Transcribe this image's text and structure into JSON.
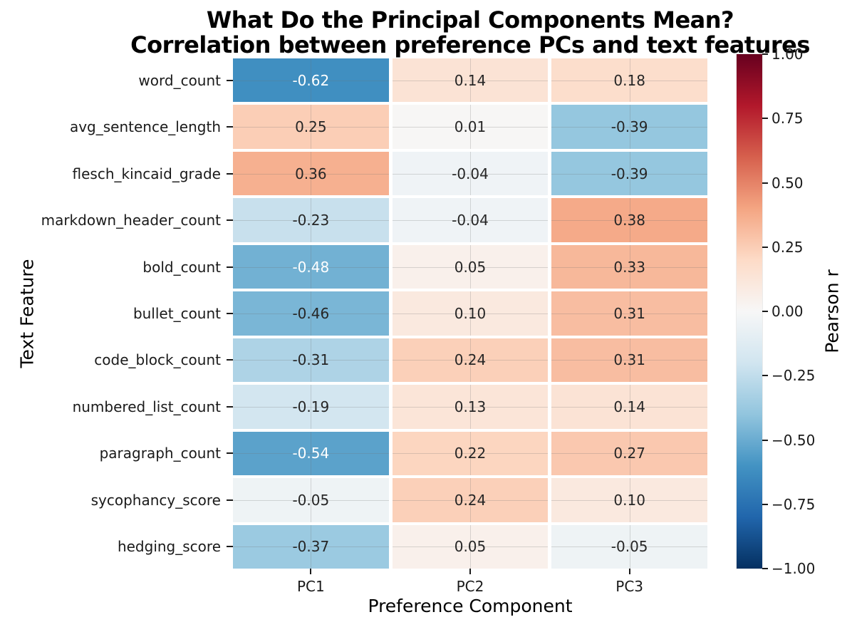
{
  "chart_data": {
    "type": "heatmap",
    "title": "What Do the Principal Components Mean?",
    "subtitle": "Correlation between preference PCs and text features",
    "xlabel": "Preference Component",
    "ylabel": "Text Feature",
    "colorbar_label": "Pearson r",
    "colormap": "RdBu_r",
    "vmin": -1,
    "vmax": 1,
    "colormap_stops": [
      "#053061",
      "#2166ac",
      "#4393c3",
      "#92c5de",
      "#d1e5f0",
      "#f7f7f7",
      "#fddbc7",
      "#f4a582",
      "#d6604d",
      "#b2182b",
      "#67001f"
    ],
    "colorbar_ticks": [
      1.0,
      0.75,
      0.5,
      0.25,
      0.0,
      -0.25,
      -0.5,
      -0.75,
      -1.0
    ],
    "columns": [
      "PC1",
      "PC2",
      "PC3"
    ],
    "rows": [
      "word_count",
      "avg_sentence_length",
      "flesch_kincaid_grade",
      "markdown_header_count",
      "bold_count",
      "bullet_count",
      "code_block_count",
      "numbered_list_count",
      "paragraph_count",
      "sycophancy_score",
      "hedging_score"
    ],
    "values": [
      [
        -0.62,
        0.14,
        0.18
      ],
      [
        0.25,
        0.01,
        -0.39
      ],
      [
        0.36,
        -0.04,
        -0.39
      ],
      [
        -0.23,
        -0.04,
        0.38
      ],
      [
        -0.48,
        0.05,
        0.33
      ],
      [
        -0.46,
        0.1,
        0.31
      ],
      [
        -0.31,
        0.24,
        0.31
      ],
      [
        -0.19,
        0.13,
        0.14
      ],
      [
        -0.54,
        0.22,
        0.27
      ],
      [
        -0.05,
        0.24,
        0.1
      ],
      [
        -0.37,
        0.05,
        -0.05
      ]
    ],
    "annotation_format": ".2f",
    "grid": true,
    "legend_position": "right-colorbar",
    "text_color_dark": "#262626",
    "text_color_light": "#ffffff"
  }
}
